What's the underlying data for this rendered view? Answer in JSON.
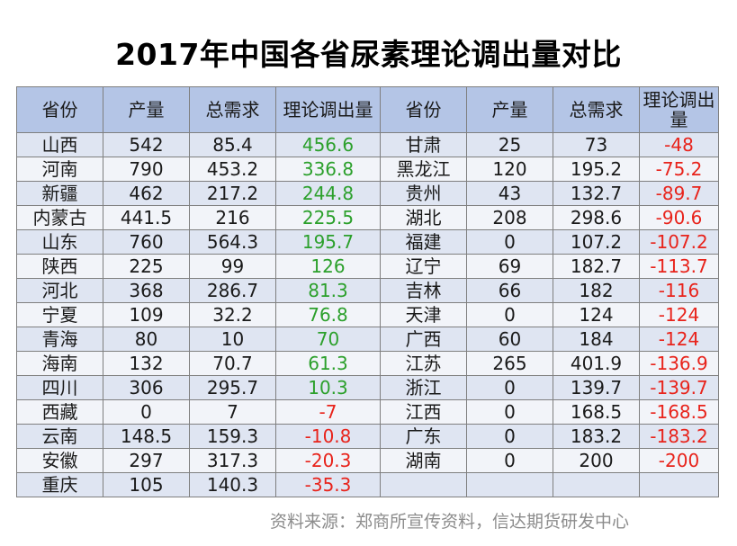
{
  "title": "2017年中国各省尿素理论调出量对比",
  "headers": [
    "省份",
    "产量",
    "总需求",
    "理论调出量",
    "省份",
    "产量",
    "总需求",
    "理论调出量"
  ],
  "left_rows": [
    {
      "province": "山西",
      "output": "542",
      "demand": "85.4",
      "surplus": "456.6",
      "sign": "pos"
    },
    {
      "province": "河南",
      "output": "790",
      "demand": "453.2",
      "surplus": "336.8",
      "sign": "pos"
    },
    {
      "province": "新疆",
      "output": "462",
      "demand": "217.2",
      "surplus": "244.8",
      "sign": "pos"
    },
    {
      "province": "内蒙古",
      "output": "441.5",
      "demand": "216",
      "surplus": "225.5",
      "sign": "pos"
    },
    {
      "province": "山东",
      "output": "760",
      "demand": "564.3",
      "surplus": "195.7",
      "sign": "pos"
    },
    {
      "province": "陕西",
      "output": "225",
      "demand": "99",
      "surplus": "126",
      "sign": "pos"
    },
    {
      "province": "河北",
      "output": "368",
      "demand": "286.7",
      "surplus": "81.3",
      "sign": "pos"
    },
    {
      "province": "宁夏",
      "output": "109",
      "demand": "32.2",
      "surplus": "76.8",
      "sign": "pos"
    },
    {
      "province": "青海",
      "output": "80",
      "demand": "10",
      "surplus": "70",
      "sign": "pos"
    },
    {
      "province": "海南",
      "output": "132",
      "demand": "70.7",
      "surplus": "61.3",
      "sign": "pos"
    },
    {
      "province": "四川",
      "output": "306",
      "demand": "295.7",
      "surplus": "10.3",
      "sign": "pos"
    },
    {
      "province": "西藏",
      "output": "0",
      "demand": "7",
      "surplus": "-7",
      "sign": "neg"
    },
    {
      "province": "云南",
      "output": "148.5",
      "demand": "159.3",
      "surplus": "-10.8",
      "sign": "neg"
    },
    {
      "province": "安徽",
      "output": "297",
      "demand": "317.3",
      "surplus": "-20.3",
      "sign": "neg"
    },
    {
      "province": "重庆",
      "output": "105",
      "demand": "140.3",
      "surplus": "-35.3",
      "sign": "neg"
    }
  ],
  "right_rows": [
    {
      "province": "甘肃",
      "output": "25",
      "demand": "73",
      "surplus": "-48",
      "sign": "neg"
    },
    {
      "province": "黑龙江",
      "output": "120",
      "demand": "195.2",
      "surplus": "-75.2",
      "sign": "neg"
    },
    {
      "province": "贵州",
      "output": "43",
      "demand": "132.7",
      "surplus": "-89.7",
      "sign": "neg"
    },
    {
      "province": "湖北",
      "output": "208",
      "demand": "298.6",
      "surplus": "-90.6",
      "sign": "neg"
    },
    {
      "province": "福建",
      "output": "0",
      "demand": "107.2",
      "surplus": "-107.2",
      "sign": "neg"
    },
    {
      "province": "辽宁",
      "output": "69",
      "demand": "182.7",
      "surplus": "-113.7",
      "sign": "neg"
    },
    {
      "province": "吉林",
      "output": "66",
      "demand": "182",
      "surplus": "-116",
      "sign": "neg"
    },
    {
      "province": "天津",
      "output": "0",
      "demand": "124",
      "surplus": "-124",
      "sign": "neg"
    },
    {
      "province": "广西",
      "output": "60",
      "demand": "184",
      "surplus": "-124",
      "sign": "neg"
    },
    {
      "province": "江苏",
      "output": "265",
      "demand": "401.9",
      "surplus": "-136.9",
      "sign": "neg"
    },
    {
      "province": "浙江",
      "output": "0",
      "demand": "139.7",
      "surplus": "-139.7",
      "sign": "neg"
    },
    {
      "province": "江西",
      "output": "0",
      "demand": "168.5",
      "surplus": "-168.5",
      "sign": "neg"
    },
    {
      "province": "广东",
      "output": "0",
      "demand": "183.2",
      "surplus": "-183.2",
      "sign": "neg"
    },
    {
      "province": "湖南",
      "output": "0",
      "demand": "200",
      "surplus": "-200",
      "sign": "neg"
    },
    {
      "province": "",
      "output": "",
      "demand": "",
      "surplus": "",
      "sign": "neg"
    }
  ],
  "source": "资料来源：郑商所宣传资料，信达期货研发中心",
  "colors": {
    "header_bg": "#b4c5e6",
    "row_odd_bg": "#dfe5f2",
    "row_even_bg": "#f2f4f9",
    "positive": "#2ca02c",
    "negative": "#e8231b"
  }
}
